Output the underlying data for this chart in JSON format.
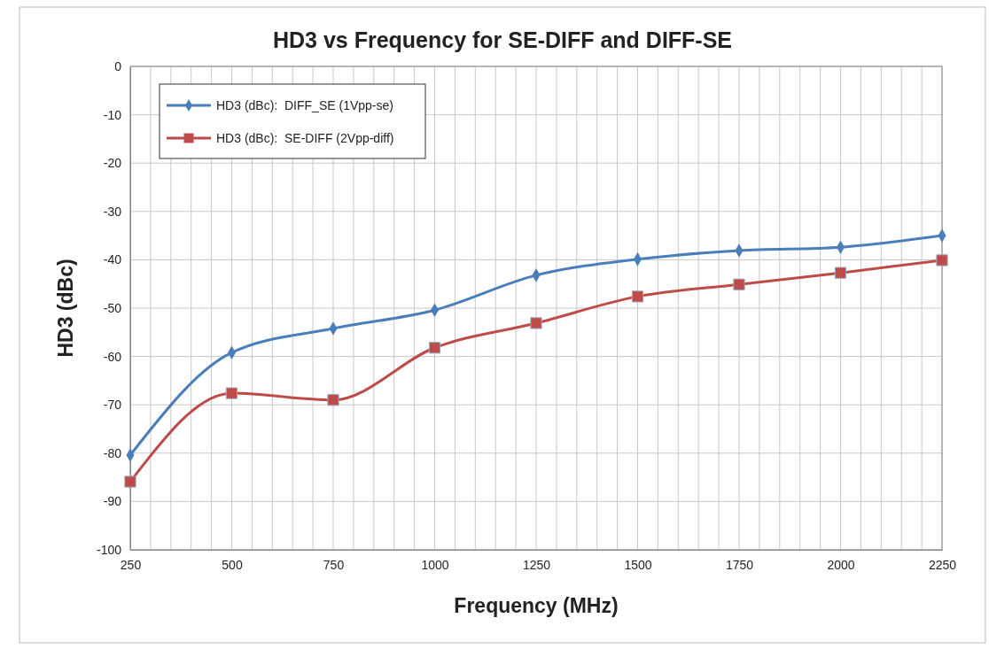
{
  "chart_data": {
    "type": "line",
    "title": "HD3 vs Frequency for SE-DIFF and DIFF-SE",
    "xlabel": "Frequency (MHz)",
    "ylabel": "HD3 (dBc)",
    "x": [
      250,
      500,
      750,
      1000,
      1250,
      1500,
      1750,
      2000,
      2250
    ],
    "series": [
      {
        "name": "HD3 (dBc):  DIFF_SE (1Vpp-se)",
        "color": "#4a7ebb",
        "marker": "diamond",
        "values": [
          -80.4,
          -59.2,
          -54.2,
          -50.4,
          -43.2,
          -39.9,
          -38.1,
          -37.4,
          -35.0
        ]
      },
      {
        "name": "HD3 (dBc):  SE-DIFF (2Vpp-diff)",
        "color": "#be4b48",
        "marker": "square",
        "values": [
          -85.9,
          -67.6,
          -69.0,
          -58.2,
          -53.1,
          -47.6,
          -45.1,
          -42.7,
          -40.1
        ]
      }
    ],
    "xlim": [
      250,
      2250
    ],
    "ylim": [
      -100,
      0
    ],
    "xticks": [
      250,
      {
        "value": 300,
        "label": null
      },
      {
        "value": 350,
        "label": null
      },
      {
        "value": 400,
        "label": null
      },
      {
        "value": 450,
        "label": null
      },
      500,
      {
        "value": 550,
        "label": null
      },
      {
        "value": 600,
        "label": null
      },
      {
        "value": 650,
        "label": null
      },
      {
        "value": 700,
        "label": null
      },
      750,
      {
        "value": 800,
        "label": null
      },
      {
        "value": 850,
        "label": null
      },
      {
        "value": 900,
        "label": null
      },
      {
        "value": 950,
        "label": null
      },
      1000,
      {
        "value": 1050,
        "label": null
      },
      {
        "value": 1100,
        "label": null
      },
      {
        "value": 1150,
        "label": null
      },
      {
        "value": 1200,
        "label": null
      },
      1250,
      {
        "value": 1300,
        "label": null
      },
      {
        "value": 1350,
        "label": null
      },
      {
        "value": 1400,
        "label": null
      },
      {
        "value": 1450,
        "label": null
      },
      1500,
      {
        "value": 1550,
        "label": null
      },
      {
        "value": 1600,
        "label": null
      },
      {
        "value": 1650,
        "label": null
      },
      {
        "value": 1700,
        "label": null
      },
      1750,
      {
        "value": 1800,
        "label": null
      },
      {
        "value": 1850,
        "label": null
      },
      {
        "value": 1900,
        "label": null
      },
      {
        "value": 1950,
        "label": null
      },
      2000,
      {
        "value": 2050,
        "label": null
      },
      {
        "value": 2100,
        "label": null
      },
      {
        "value": 2150,
        "label": null
      },
      {
        "value": 2200,
        "label": null
      },
      2250
    ],
    "yticks": [
      -100,
      -90,
      -80,
      -70,
      -60,
      -50,
      -40,
      -30,
      -20,
      -10,
      0
    ],
    "grid": true,
    "legend": "top left",
    "line_style": "solid"
  }
}
